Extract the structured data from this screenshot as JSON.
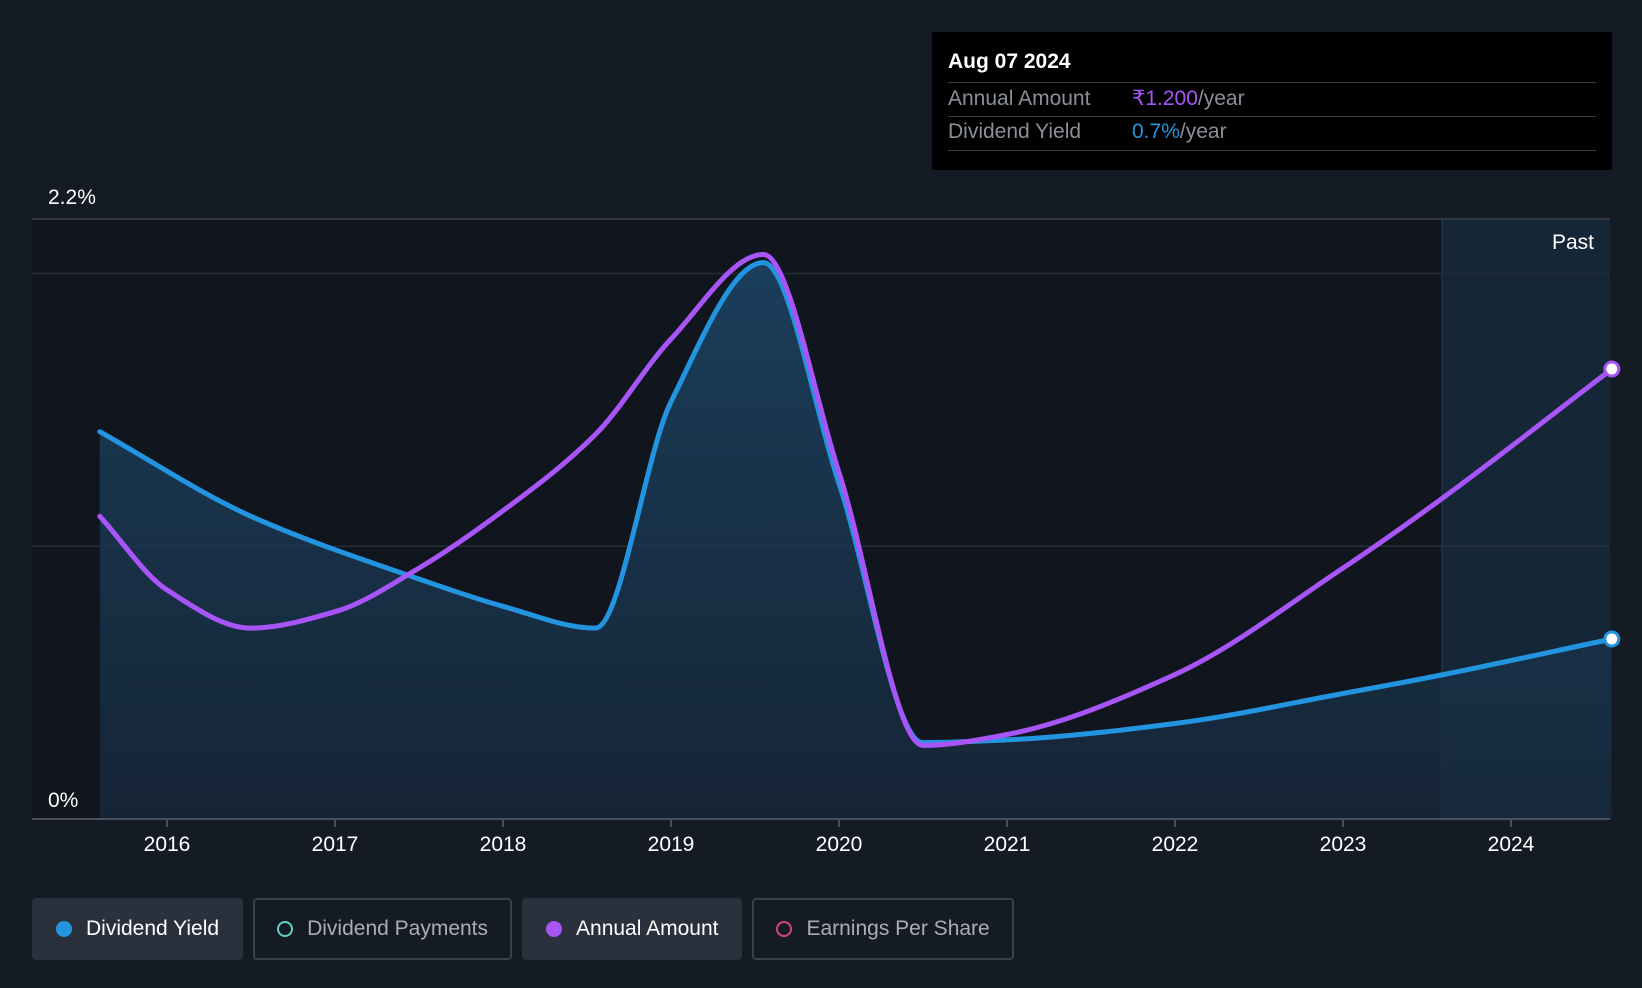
{
  "tooltip": {
    "date": "Aug 07 2024",
    "rows": [
      {
        "label": "Annual Amount",
        "value": "₹1.200",
        "unit": "/year",
        "color": "#a855f7"
      },
      {
        "label": "Dividend Yield",
        "value": "0.7%",
        "unit": "/year",
        "color": "#2394df"
      }
    ]
  },
  "legend": [
    {
      "label": "Dividend Yield",
      "color": "#2394df",
      "filled": true,
      "active": true
    },
    {
      "label": "Dividend Payments",
      "color": "#5fd3c0",
      "filled": false,
      "active": false
    },
    {
      "label": "Annual Amount",
      "color": "#a855f7",
      "filled": true,
      "active": true
    },
    {
      "label": "Earnings Per Share",
      "color": "#d6457f",
      "filled": false,
      "active": false
    }
  ],
  "chart_data": {
    "type": "line",
    "x_ticks": [
      "2016",
      "2017",
      "2018",
      "2019",
      "2020",
      "2021",
      "2022",
      "2023",
      "2024"
    ],
    "y_ticks": [
      "0%",
      "2.2%"
    ],
    "ylim": [
      0,
      2.2
    ],
    "xlim": [
      2015.0,
      2024.6
    ],
    "region_label": "Past",
    "region_start": 2023.6,
    "grid": true,
    "legend_position": "bottom",
    "series": [
      {
        "name": "Dividend Yield",
        "color": "#2394df",
        "filled": true,
        "points": [
          [
            2015.6,
            1.42
          ],
          [
            2016.5,
            1.11
          ],
          [
            2017.5,
            0.88
          ],
          [
            2018.0,
            0.78
          ],
          [
            2018.55,
            0.7
          ],
          [
            2019.0,
            1.53
          ],
          [
            2019.55,
            2.04
          ],
          [
            2020.0,
            1.23
          ],
          [
            2020.5,
            0.28
          ],
          [
            2021.0,
            0.29
          ],
          [
            2022.0,
            0.35
          ],
          [
            2023.0,
            0.46
          ],
          [
            2023.6,
            0.53
          ],
          [
            2024.6,
            0.66
          ]
        ]
      },
      {
        "name": "Annual Amount",
        "color": "#a855f7",
        "filled": false,
        "points": [
          [
            2015.6,
            1.11
          ],
          [
            2016.0,
            0.84
          ],
          [
            2016.5,
            0.7
          ],
          [
            2017.0,
            0.76
          ],
          [
            2017.5,
            0.92
          ],
          [
            2018.0,
            1.13
          ],
          [
            2018.55,
            1.41
          ],
          [
            2019.0,
            1.76
          ],
          [
            2019.55,
            2.07
          ],
          [
            2020.0,
            1.27
          ],
          [
            2020.5,
            0.27
          ],
          [
            2021.0,
            0.31
          ],
          [
            2022.0,
            0.53
          ],
          [
            2023.0,
            0.92
          ],
          [
            2023.6,
            1.18
          ],
          [
            2024.6,
            1.65
          ]
        ]
      }
    ]
  }
}
